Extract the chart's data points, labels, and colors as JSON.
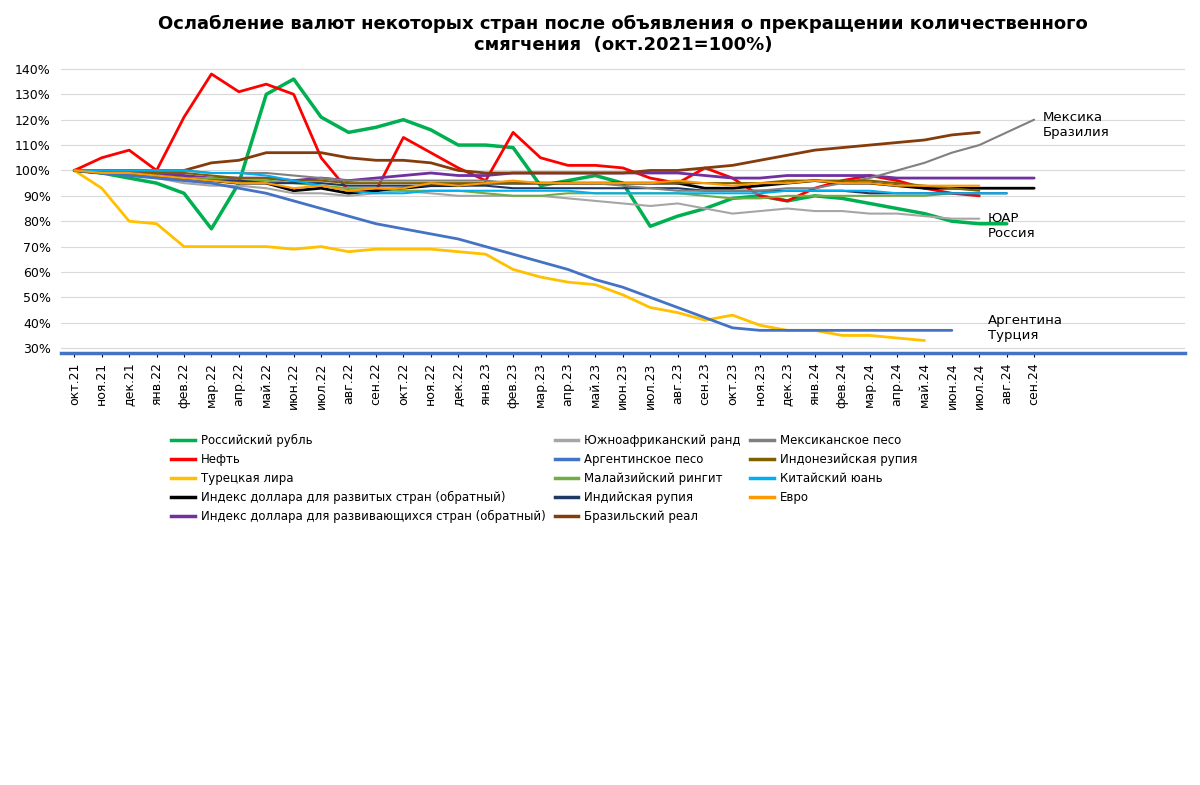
{
  "title": "Ослабление валют некоторых стран после объявления о прекращении количественного\nсмягчения  (окт.2021=100%)",
  "x_labels": [
    "окт.21",
    "ноя.21",
    "дек.21",
    "янв.22",
    "фев.22",
    "мар.22",
    "апр.22",
    "май.22",
    "июн.22",
    "июл.22",
    "авг.22",
    "сен.22",
    "окт.22",
    "ноя.22",
    "дек.22",
    "янв.23",
    "фев.23",
    "мар.23",
    "апр.23",
    "май.23",
    "июн.23",
    "июл.23",
    "авг.23",
    "сен.23",
    "окт.23",
    "ноя.23",
    "дек.23",
    "янв.24",
    "фев.24",
    "мар.24",
    "апр.24",
    "май.24",
    "июн.24",
    "июл.24",
    "авг.24",
    "сен.24"
  ],
  "series": [
    {
      "name": "Российский рубль",
      "color": "#00B050",
      "linewidth": 2.5,
      "values": [
        100,
        99,
        97,
        95,
        91,
        77,
        95,
        130,
        136,
        121,
        115,
        117,
        120,
        116,
        110,
        110,
        109,
        94,
        96,
        98,
        95,
        78,
        82,
        85,
        89,
        90,
        88,
        90,
        89,
        87,
        85,
        83,
        80,
        79,
        79,
        null
      ]
    },
    {
      "name": "Нефть",
      "color": "#FF0000",
      "linewidth": 2.0,
      "values": [
        100,
        105,
        108,
        100,
        121,
        138,
        131,
        134,
        130,
        105,
        92,
        92,
        113,
        107,
        101,
        96,
        115,
        105,
        102,
        102,
        101,
        97,
        95,
        101,
        97,
        90,
        88,
        93,
        96,
        98,
        96,
        93,
        91,
        90,
        null,
        null
      ]
    },
    {
      "name": "Турецкая лира",
      "color": "#FFC000",
      "linewidth": 2.0,
      "values": [
        100,
        93,
        80,
        79,
        70,
        70,
        70,
        70,
        69,
        70,
        68,
        69,
        69,
        69,
        68,
        67,
        61,
        58,
        56,
        55,
        51,
        46,
        44,
        41,
        43,
        39,
        37,
        37,
        35,
        35,
        34,
        33,
        null,
        null,
        null,
        null
      ]
    },
    {
      "name": "Индекс доллара для развитых стран (обратный)",
      "color": "#000000",
      "linewidth": 2.0,
      "values": [
        100,
        99,
        99,
        98,
        97,
        96,
        95,
        95,
        92,
        93,
        91,
        92,
        93,
        94,
        94,
        95,
        95,
        95,
        95,
        95,
        95,
        95,
        95,
        93,
        93,
        94,
        95,
        96,
        95,
        95,
        94,
        93,
        93,
        93,
        93,
        93
      ]
    },
    {
      "name": "Индекс доллара для развивающихся стран (обратный)",
      "color": "#7030A0",
      "linewidth": 2.0,
      "values": [
        100,
        100,
        100,
        99,
        98,
        97,
        97,
        97,
        96,
        97,
        96,
        97,
        98,
        99,
        98,
        98,
        99,
        99,
        99,
        99,
        99,
        99,
        99,
        98,
        97,
        97,
        98,
        98,
        98,
        98,
        97,
        97,
        97,
        97,
        97,
        97
      ]
    },
    {
      "name": "Южноафриканский ранд",
      "color": "#A6A6A6",
      "linewidth": 1.5,
      "values": [
        100,
        99,
        98,
        97,
        95,
        94,
        94,
        93,
        91,
        91,
        90,
        91,
        92,
        91,
        90,
        90,
        90,
        90,
        89,
        88,
        87,
        86,
        87,
        85,
        83,
        84,
        85,
        84,
        84,
        83,
        83,
        82,
        81,
        81,
        null,
        null
      ]
    },
    {
      "name": "Аргентинское песо",
      "color": "#4472C4",
      "linewidth": 2.0,
      "values": [
        100,
        99,
        98,
        97,
        96,
        95,
        93,
        91,
        88,
        85,
        82,
        79,
        77,
        75,
        73,
        70,
        67,
        64,
        61,
        57,
        54,
        50,
        46,
        42,
        38,
        37,
        37,
        37,
        37,
        37,
        37,
        37,
        37,
        null,
        null,
        null
      ]
    },
    {
      "name": "Малайзийский рингит",
      "color": "#70AD47",
      "linewidth": 1.5,
      "values": [
        100,
        100,
        99,
        98,
        97,
        97,
        96,
        96,
        95,
        94,
        93,
        93,
        92,
        92,
        92,
        91,
        90,
        90,
        91,
        91,
        91,
        91,
        91,
        90,
        89,
        89,
        90,
        90,
        90,
        90,
        90,
        90,
        91,
        null,
        null,
        null
      ]
    },
    {
      "name": "Индийская рупия",
      "color": "#203864",
      "linewidth": 1.5,
      "values": [
        100,
        99,
        99,
        98,
        97,
        96,
        96,
        95,
        95,
        95,
        94,
        94,
        94,
        94,
        94,
        94,
        93,
        93,
        93,
        93,
        93,
        93,
        93,
        92,
        92,
        92,
        92,
        92,
        92,
        91,
        91,
        91,
        91,
        91,
        91,
        null
      ]
    },
    {
      "name": "Бразильский реал",
      "color": "#843C0C",
      "linewidth": 2.0,
      "values": [
        100,
        100,
        100,
        100,
        100,
        103,
        104,
        107,
        107,
        107,
        105,
        104,
        104,
        103,
        100,
        99,
        99,
        99,
        99,
        99,
        99,
        100,
        100,
        101,
        102,
        104,
        106,
        108,
        109,
        110,
        111,
        112,
        114,
        115,
        null,
        null
      ]
    },
    {
      "name": "Мексиканское песо",
      "color": "#808080",
      "linewidth": 1.5,
      "values": [
        100,
        100,
        100,
        100,
        100,
        99,
        99,
        99,
        98,
        97,
        96,
        96,
        96,
        96,
        96,
        96,
        95,
        95,
        95,
        95,
        94,
        93,
        92,
        92,
        92,
        92,
        93,
        93,
        95,
        97,
        100,
        103,
        107,
        110,
        115,
        120
      ]
    },
    {
      "name": "Индонезийская рупия",
      "color": "#7F6000",
      "linewidth": 1.5,
      "values": [
        100,
        100,
        100,
        99,
        99,
        98,
        97,
        97,
        96,
        96,
        95,
        95,
        95,
        95,
        95,
        95,
        95,
        95,
        95,
        95,
        95,
        95,
        95,
        95,
        95,
        95,
        96,
        96,
        96,
        96,
        95,
        94,
        93,
        92,
        null,
        null
      ]
    },
    {
      "name": "Китайский юань",
      "color": "#00B0F0",
      "linewidth": 1.5,
      "values": [
        100,
        100,
        100,
        100,
        100,
        99,
        99,
        98,
        96,
        94,
        92,
        91,
        91,
        92,
        92,
        92,
        92,
        92,
        92,
        91,
        91,
        91,
        91,
        91,
        91,
        91,
        92,
        92,
        92,
        92,
        91,
        91,
        91,
        91,
        91,
        null
      ]
    },
    {
      "name": "Евро",
      "color": "#FF9900",
      "linewidth": 1.5,
      "values": [
        100,
        99,
        99,
        98,
        97,
        96,
        95,
        95,
        93,
        94,
        92,
        93,
        93,
        95,
        94,
        95,
        96,
        95,
        95,
        95,
        95,
        95,
        96,
        95,
        94,
        95,
        95,
        96,
        95,
        95,
        94,
        94,
        94,
        94,
        null,
        null
      ]
    }
  ],
  "annotations": [
    {
      "text": "Мексика",
      "xi": 35,
      "y": 121,
      "ha": "left"
    },
    {
      "text": "Бразилия",
      "xi": 35,
      "y": 115,
      "ha": "left"
    },
    {
      "text": "ЮАР",
      "xi": 33,
      "y": 81,
      "ha": "left"
    },
    {
      "text": "Россия",
      "xi": 33,
      "y": 75,
      "ha": "left"
    },
    {
      "text": "Аргентина",
      "xi": 33,
      "y": 41,
      "ha": "left"
    },
    {
      "text": "Турция",
      "xi": 33,
      "y": 35,
      "ha": "left"
    }
  ],
  "ylim": [
    28,
    142
  ],
  "yticks": [
    30,
    40,
    50,
    60,
    70,
    80,
    90,
    100,
    110,
    120,
    130,
    140
  ],
  "background_color": "#FFFFFF",
  "grid_color": "#D9D9D9",
  "title_fontsize": 13,
  "legend_fontsize": 8.5,
  "tick_fontsize": 9,
  "legend_order": [
    "Российский рубль",
    "Нефть",
    "Турецкая лира",
    "Индекс доллара для развитых стран (обратный)",
    "Индекс доллара для развивающихся стран (обратный)",
    "Южноафриканский ранд",
    "Аргентинское песо",
    "Малайзийский рингит",
    "Индийская рупия",
    "Бразильский реал",
    "Мексиканское песо",
    "Индонезийская рупия",
    "Китайский юань",
    "Евро"
  ]
}
